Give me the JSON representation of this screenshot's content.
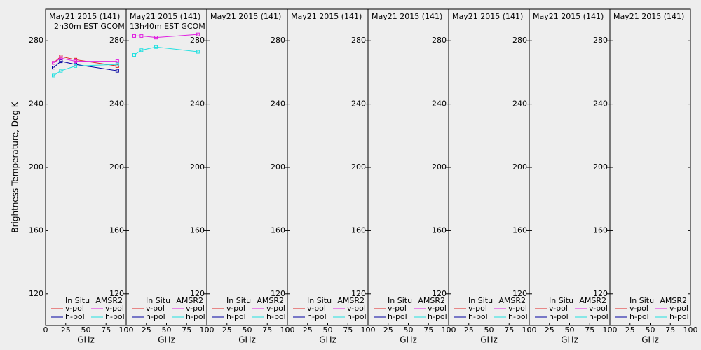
{
  "ylabel": "Brightness Temperature, Deg K",
  "chart_data": [
    {
      "type": "line",
      "title": "May21 2015 (141)",
      "subtitle": "2h30m EST GCOM",
      "xlabel": "GHz",
      "x": [
        10,
        19,
        37,
        89
      ],
      "xlim": [
        0,
        100
      ],
      "xticks": [
        0,
        25,
        50,
        75,
        100
      ],
      "ylim": [
        100,
        300
      ],
      "yticks": [
        120,
        160,
        200,
        240,
        280
      ],
      "series": [
        {
          "group": "In Situ",
          "name": "v-pol",
          "color": "#e02020",
          "values": [
            266,
            270,
            268,
            264
          ]
        },
        {
          "group": "In Situ",
          "name": "h-pol",
          "color": "#0000a0",
          "values": [
            263,
            267,
            265,
            261
          ]
        },
        {
          "group": "AMSR2",
          "name": "v-pol",
          "color": "#e020e0",
          "values": [
            266,
            269,
            267,
            267
          ]
        },
        {
          "group": "AMSR2",
          "name": "h-pol",
          "color": "#20e0e0",
          "values": [
            258,
            261,
            264,
            265
          ]
        }
      ]
    },
    {
      "type": "line",
      "title": "May21 2015 (141)",
      "subtitle": "13h40m EST GCOM",
      "xlabel": "GHz",
      "x": [
        10,
        19,
        37,
        89
      ],
      "xlim": [
        0,
        100
      ],
      "xticks": [
        0,
        25,
        50,
        75,
        100
      ],
      "ylim": [
        100,
        300
      ],
      "yticks": [
        120,
        160,
        200,
        240,
        280
      ],
      "series": [
        {
          "group": "In Situ",
          "name": "v-pol",
          "color": "#e02020",
          "values": [
            null,
            null,
            null,
            null
          ]
        },
        {
          "group": "In Situ",
          "name": "h-pol",
          "color": "#0000a0",
          "values": [
            null,
            null,
            null,
            null
          ]
        },
        {
          "group": "AMSR2",
          "name": "v-pol",
          "color": "#e020e0",
          "values": [
            283,
            283,
            282,
            284
          ]
        },
        {
          "group": "AMSR2",
          "name": "h-pol",
          "color": "#20e0e0",
          "values": [
            271,
            274,
            276,
            273
          ]
        }
      ]
    },
    {
      "type": "line",
      "title": "May21 2015 (141)",
      "xlabel": "GHz",
      "x": [],
      "xlim": [
        0,
        100
      ],
      "xticks": [
        0,
        25,
        50,
        75,
        100
      ],
      "ylim": [
        100,
        300
      ],
      "yticks": [
        120,
        160,
        200,
        240,
        280
      ],
      "series": [
        {
          "group": "In Situ",
          "name": "v-pol",
          "color": "#e02020",
          "values": []
        },
        {
          "group": "In Situ",
          "name": "h-pol",
          "color": "#0000a0",
          "values": []
        },
        {
          "group": "AMSR2",
          "name": "v-pol",
          "color": "#e020e0",
          "values": []
        },
        {
          "group": "AMSR2",
          "name": "h-pol",
          "color": "#20e0e0",
          "values": []
        }
      ]
    },
    {
      "type": "line",
      "title": "May21 2015 (141)",
      "xlabel": "GHz",
      "x": [],
      "xlim": [
        0,
        100
      ],
      "xticks": [
        0,
        25,
        50,
        75,
        100
      ],
      "ylim": [
        100,
        300
      ],
      "yticks": [
        120,
        160,
        200,
        240,
        280
      ],
      "series": [
        {
          "group": "In Situ",
          "name": "v-pol",
          "color": "#e02020",
          "values": []
        },
        {
          "group": "In Situ",
          "name": "h-pol",
          "color": "#0000a0",
          "values": []
        },
        {
          "group": "AMSR2",
          "name": "v-pol",
          "color": "#e020e0",
          "values": []
        },
        {
          "group": "AMSR2",
          "name": "h-pol",
          "color": "#20e0e0",
          "values": []
        }
      ]
    },
    {
      "type": "line",
      "title": "May21 2015 (141)",
      "xlabel": "GHz",
      "x": [],
      "xlim": [
        0,
        100
      ],
      "xticks": [
        0,
        25,
        50,
        75,
        100
      ],
      "ylim": [
        100,
        300
      ],
      "yticks": [
        120,
        160,
        200,
        240,
        280
      ],
      "series": [
        {
          "group": "In Situ",
          "name": "v-pol",
          "color": "#e02020",
          "values": []
        },
        {
          "group": "In Situ",
          "name": "h-pol",
          "color": "#0000a0",
          "values": []
        },
        {
          "group": "AMSR2",
          "name": "v-pol",
          "color": "#e020e0",
          "values": []
        },
        {
          "group": "AMSR2",
          "name": "h-pol",
          "color": "#20e0e0",
          "values": []
        }
      ]
    },
    {
      "type": "line",
      "title": "May21 2015 (141)",
      "xlabel": "GHz",
      "x": [],
      "xlim": [
        0,
        100
      ],
      "xticks": [
        0,
        25,
        50,
        75,
        100
      ],
      "ylim": [
        100,
        300
      ],
      "yticks": [
        120,
        160,
        200,
        240,
        280
      ],
      "series": [
        {
          "group": "In Situ",
          "name": "v-pol",
          "color": "#e02020",
          "values": []
        },
        {
          "group": "In Situ",
          "name": "h-pol",
          "color": "#0000a0",
          "values": []
        },
        {
          "group": "AMSR2",
          "name": "v-pol",
          "color": "#e020e0",
          "values": []
        },
        {
          "group": "AMSR2",
          "name": "h-pol",
          "color": "#20e0e0",
          "values": []
        }
      ]
    },
    {
      "type": "line",
      "title": "May21 2015 (141)",
      "xlabel": "GHz",
      "x": [],
      "xlim": [
        0,
        100
      ],
      "xticks": [
        0,
        25,
        50,
        75,
        100
      ],
      "ylim": [
        100,
        300
      ],
      "yticks": [
        120,
        160,
        200,
        240,
        280
      ],
      "series": [
        {
          "group": "In Situ",
          "name": "v-pol",
          "color": "#e02020",
          "values": []
        },
        {
          "group": "In Situ",
          "name": "h-pol",
          "color": "#0000a0",
          "values": []
        },
        {
          "group": "AMSR2",
          "name": "v-pol",
          "color": "#e020e0",
          "values": []
        },
        {
          "group": "AMSR2",
          "name": "h-pol",
          "color": "#20e0e0",
          "values": []
        }
      ]
    },
    {
      "type": "line",
      "title": "May21 2015 (141)",
      "xlabel": "GHz",
      "x": [],
      "xlim": [
        0,
        100
      ],
      "xticks": [
        0,
        25,
        50,
        75,
        100
      ],
      "ylim": [
        100,
        300
      ],
      "yticks": [
        120,
        160,
        200,
        240,
        280
      ],
      "series": [
        {
          "group": "In Situ",
          "name": "v-pol",
          "color": "#e02020",
          "values": []
        },
        {
          "group": "In Situ",
          "name": "h-pol",
          "color": "#0000a0",
          "values": []
        },
        {
          "group": "AMSR2",
          "name": "v-pol",
          "color": "#e020e0",
          "values": []
        },
        {
          "group": "AMSR2",
          "name": "h-pol",
          "color": "#20e0e0",
          "values": []
        }
      ]
    }
  ]
}
